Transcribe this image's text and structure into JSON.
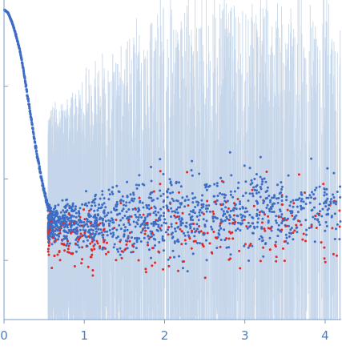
{
  "chart_data": {
    "type": "scatter",
    "title": "",
    "xlabel": "",
    "ylabel": "",
    "xlim": [
      0,
      4.2
    ],
    "ylim": [
      0,
      1.0
    ],
    "grid": false,
    "error_bars": true,
    "x_ticks": [
      "0",
      "1",
      "2",
      "3",
      "4"
    ],
    "x_tick_values": [
      0,
      1,
      2,
      3,
      4
    ],
    "y_tick_values": [
      0.185,
      0.44,
      0.73
    ],
    "colors": {
      "points": "#3d6cc4",
      "negative_points": "#e02a2a",
      "error_bars": "#c6d6ea",
      "axes": "#7a9cc7",
      "tick_labels": "#4a7fc0"
    },
    "series": [
      {
        "type": "curve",
        "x": [
          0.0,
          0.05,
          0.1,
          0.15,
          0.2,
          0.25,
          0.3,
          0.35,
          0.4,
          0.45,
          0.5,
          0.55,
          0.6
        ],
        "y": [
          0.97,
          0.96,
          0.93,
          0.89,
          0.84,
          0.77,
          0.69,
          0.61,
          0.53,
          0.46,
          0.4,
          0.35,
          0.33
        ]
      },
      {
        "type": "scattered",
        "x_start": 0.55,
        "x_end": 4.2,
        "center_start": 0.3,
        "center_end": 0.36,
        "spread_start": 0.09,
        "spread_end": 0.22,
        "floor": 0.02,
        "ceiling": 0.58,
        "count": 1500,
        "negative_share": 0.17,
        "error_bar_min": 0.15,
        "error_bar_max": 0.65
      }
    ]
  }
}
